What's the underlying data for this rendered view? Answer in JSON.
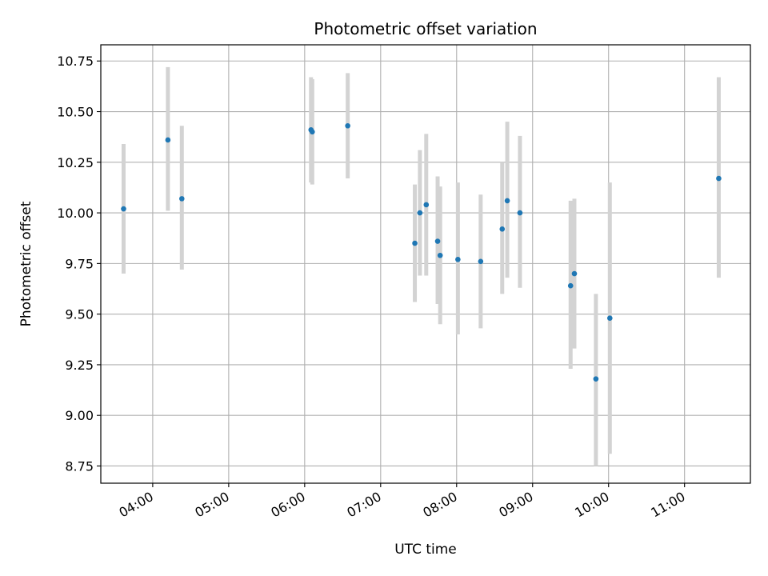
{
  "chart_data": {
    "type": "scatter",
    "title": "Photometric offset variation",
    "xlabel": "UTC time",
    "ylabel": "Photometric offset",
    "x_ticks": [
      "04:00",
      "05:00",
      "06:00",
      "07:00",
      "08:00",
      "09:00",
      "10:00",
      "11:00"
    ],
    "y_ticks": [
      "8.75",
      "9.00",
      "9.25",
      "9.50",
      "9.75",
      "10.00",
      "10.25",
      "10.50",
      "10.75"
    ],
    "xlim": [
      "03:19",
      "11:52"
    ],
    "ylim": [
      8.665,
      10.83
    ],
    "grid": true,
    "colors": {
      "point": "#1f77b4",
      "errorbar": "#d3d3d3",
      "grid": "#b0b0b0"
    },
    "points": [
      {
        "x": "03:37",
        "y": 10.02,
        "ylo": 9.7,
        "yhi": 10.34
      },
      {
        "x": "04:12",
        "y": 10.36,
        "ylo": 10.01,
        "yhi": 10.72
      },
      {
        "x": "04:23",
        "y": 10.07,
        "ylo": 9.72,
        "yhi": 10.43
      },
      {
        "x": "06:05",
        "y": 10.41,
        "ylo": 10.15,
        "yhi": 10.67
      },
      {
        "x": "06:06",
        "y": 10.4,
        "ylo": 10.14,
        "yhi": 10.66
      },
      {
        "x": "06:34",
        "y": 10.43,
        "ylo": 10.17,
        "yhi": 10.69
      },
      {
        "x": "07:27",
        "y": 9.85,
        "ylo": 9.56,
        "yhi": 10.14
      },
      {
        "x": "07:31",
        "y": 10.0,
        "ylo": 9.69,
        "yhi": 10.31
      },
      {
        "x": "07:36",
        "y": 10.04,
        "ylo": 9.69,
        "yhi": 10.39
      },
      {
        "x": "07:45",
        "y": 9.86,
        "ylo": 9.55,
        "yhi": 10.18
      },
      {
        "x": "07:47",
        "y": 9.79,
        "ylo": 9.45,
        "yhi": 10.13
      },
      {
        "x": "08:01",
        "y": 9.77,
        "ylo": 9.4,
        "yhi": 10.15
      },
      {
        "x": "08:19",
        "y": 9.76,
        "ylo": 9.43,
        "yhi": 10.09
      },
      {
        "x": "08:36",
        "y": 9.92,
        "ylo": 9.6,
        "yhi": 10.25
      },
      {
        "x": "08:40",
        "y": 10.06,
        "ylo": 9.68,
        "yhi": 10.45
      },
      {
        "x": "08:50",
        "y": 10.0,
        "ylo": 9.63,
        "yhi": 10.38
      },
      {
        "x": "09:30",
        "y": 9.64,
        "ylo": 9.23,
        "yhi": 10.06
      },
      {
        "x": "09:33",
        "y": 9.7,
        "ylo": 9.33,
        "yhi": 10.07
      },
      {
        "x": "09:50",
        "y": 9.18,
        "ylo": 8.75,
        "yhi": 9.6
      },
      {
        "x": "10:01",
        "y": 9.48,
        "ylo": 8.81,
        "yhi": 10.15
      },
      {
        "x": "11:27",
        "y": 10.17,
        "ylo": 9.68,
        "yhi": 10.67
      }
    ]
  }
}
